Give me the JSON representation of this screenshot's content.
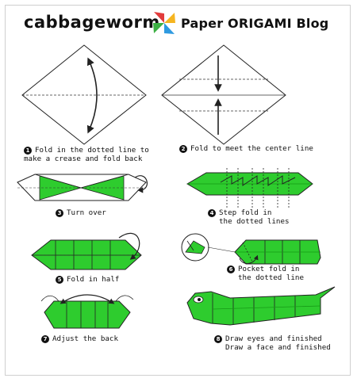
{
  "header": {
    "title": "cabbageworm",
    "brand": "Paper ORIGAMI Blog",
    "brand_colors": [
      "#e23c3c",
      "#f6b520",
      "#2f9ae0",
      "#3cb043"
    ]
  },
  "colors": {
    "paper_green": "#2ecc2e",
    "paper_green_dark": "#169a16",
    "line": "#222222"
  },
  "steps": [
    {
      "num": "1",
      "line1": "Fold in the dotted line to",
      "line2": "make a crease and fold back"
    },
    {
      "num": "2",
      "line1": "Fold to meet the center line",
      "line2": ""
    },
    {
      "num": "3",
      "line1": "Turn over",
      "line2": ""
    },
    {
      "num": "4",
      "line1": "Step fold in",
      "line2": "the dotted lines"
    },
    {
      "num": "5",
      "line1": "Fold in half",
      "line2": ""
    },
    {
      "num": "6",
      "line1": "Pocket fold in",
      "line2": "the dotted line"
    },
    {
      "num": "7",
      "line1": "Adjust the back",
      "line2": ""
    },
    {
      "num": "8",
      "line1": "Draw eyes and finished",
      "line2": "Draw a face and finished"
    }
  ]
}
